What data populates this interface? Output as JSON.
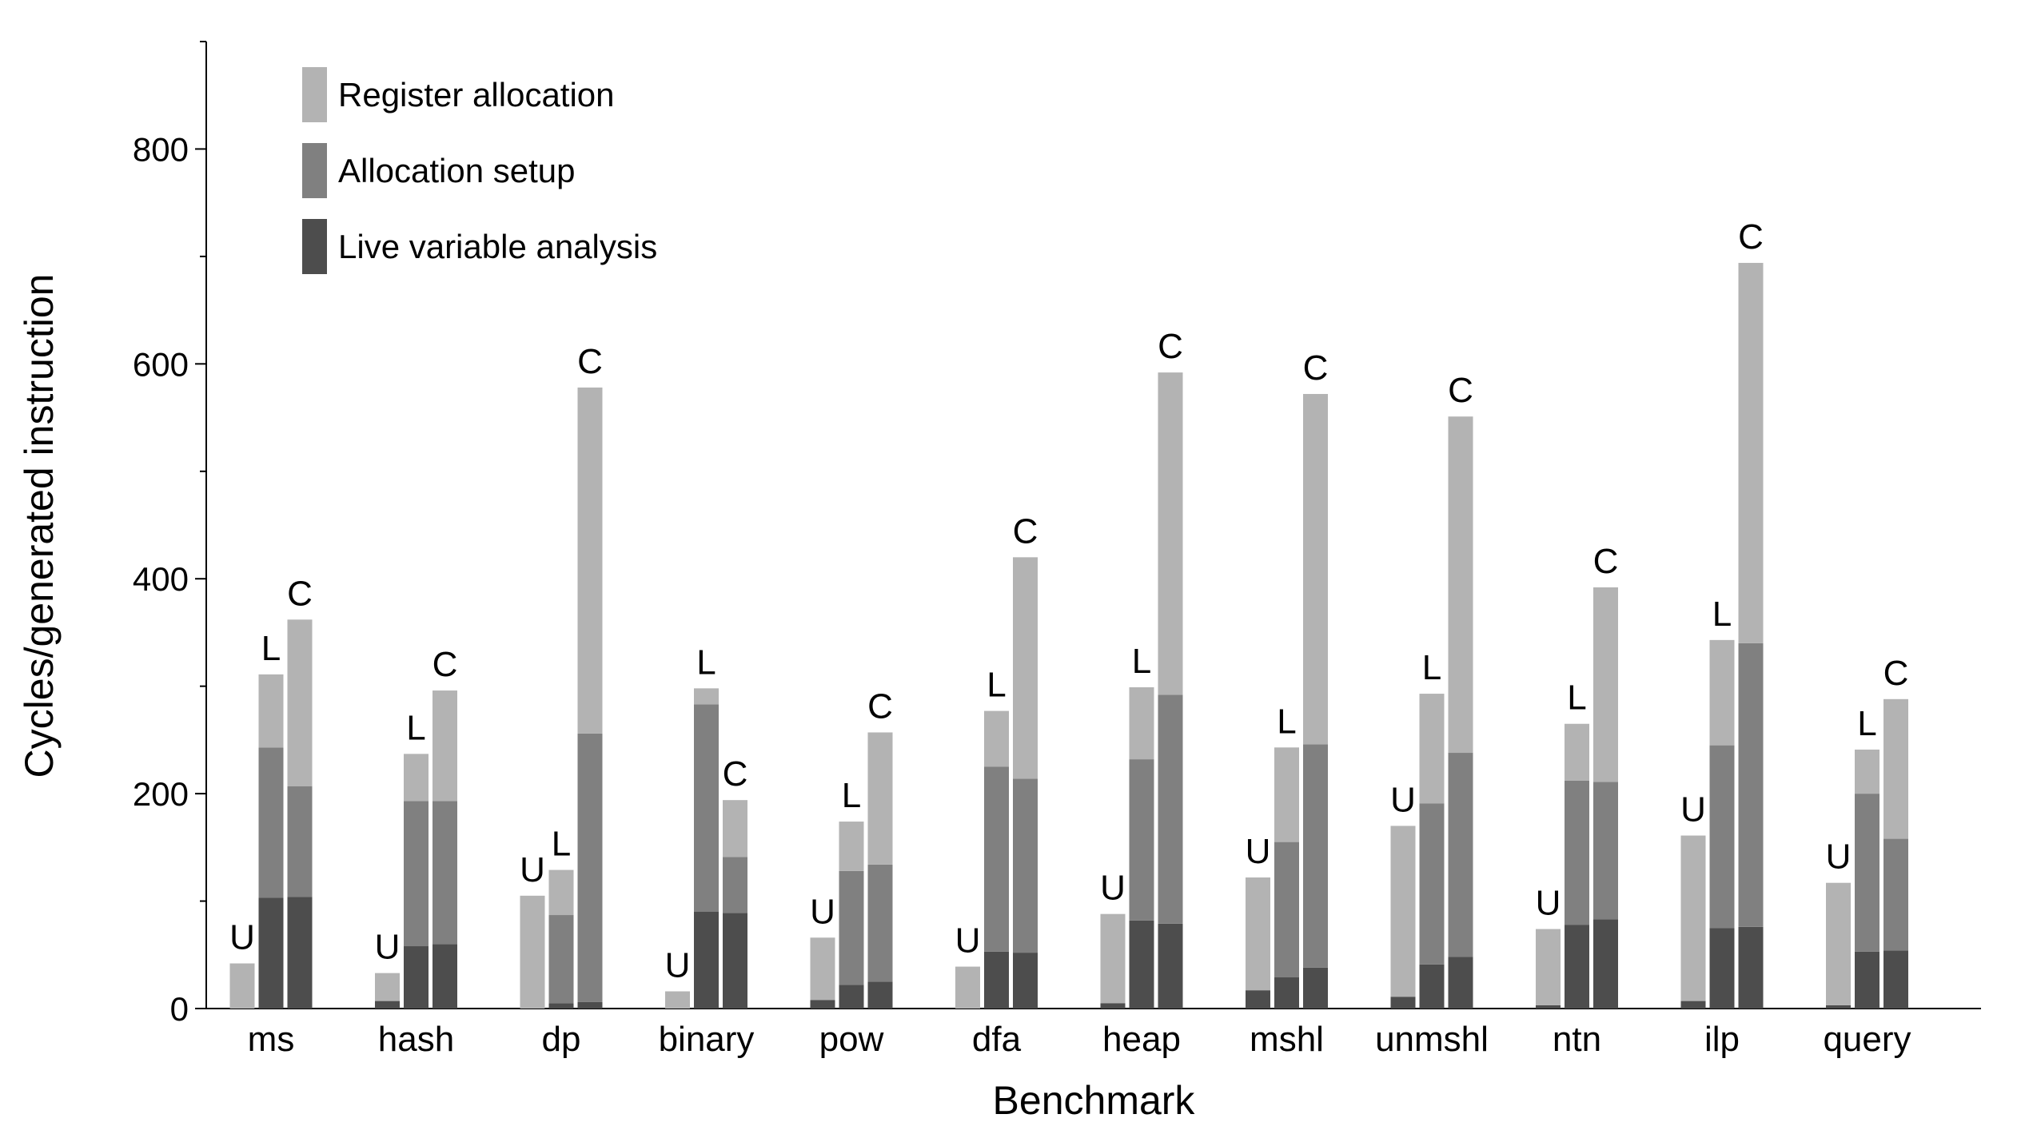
{
  "chart_data": {
    "type": "bar",
    "stacked": true,
    "grouped": true,
    "xlabel": "Benchmark",
    "ylabel": "Cycles/generated instruction",
    "ylim": [
      0,
      900
    ],
    "yticks": [
      0,
      200,
      400,
      600,
      800
    ],
    "grid": false,
    "legend_position": "top-left",
    "categories": [
      "ms",
      "hash",
      "dp",
      "binary",
      "pow",
      "dfa",
      "heap",
      "mshl",
      "unmshl",
      "ntn",
      "ilp",
      "query"
    ],
    "bar_tags": [
      "U",
      "L",
      "C"
    ],
    "series": [
      {
        "name": "Live variable analysis",
        "color": "#4d4d4d",
        "values": [
          [
            0,
            103,
            104
          ],
          [
            7,
            58,
            60
          ],
          [
            0,
            5,
            6
          ],
          [
            0,
            90,
            89
          ],
          [
            8,
            22,
            25
          ],
          [
            0,
            53,
            52
          ],
          [
            5,
            82,
            79
          ],
          [
            17,
            29,
            38
          ],
          [
            11,
            41,
            48
          ],
          [
            3,
            78,
            83
          ],
          [
            7,
            75,
            76
          ],
          [
            3,
            53,
            54
          ]
        ]
      },
      {
        "name": "Allocation setup",
        "color": "#808080",
        "values": [
          [
            0,
            140,
            103
          ],
          [
            0,
            135,
            133
          ],
          [
            0,
            82,
            250
          ],
          [
            0,
            193,
            52
          ],
          [
            0,
            106,
            109
          ],
          [
            0,
            172,
            162
          ],
          [
            0,
            150,
            213
          ],
          [
            0,
            126,
            208
          ],
          [
            0,
            150,
            190
          ],
          [
            0,
            134,
            128
          ],
          [
            0,
            170,
            264
          ],
          [
            0,
            147,
            104
          ]
        ]
      },
      {
        "name": "Register allocation",
        "color": "#b3b3b3",
        "values": [
          [
            42,
            68,
            155
          ],
          [
            26,
            44,
            103
          ],
          [
            105,
            42,
            322
          ],
          [
            16,
            15,
            53
          ],
          [
            58,
            46,
            123
          ],
          [
            39,
            52,
            206
          ],
          [
            83,
            67,
            300
          ],
          [
            105,
            88,
            326
          ],
          [
            159,
            102,
            313
          ],
          [
            71,
            53,
            181
          ],
          [
            154,
            98,
            354
          ],
          [
            114,
            41,
            130
          ]
        ]
      }
    ]
  }
}
